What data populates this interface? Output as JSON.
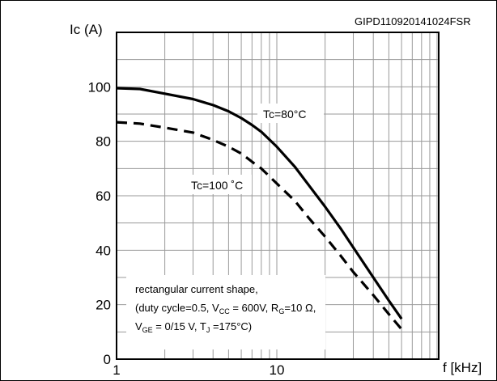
{
  "figure_id": "GIPD110920141024FSR",
  "chart_data": {
    "type": "line",
    "xscale": "log",
    "xlim": [
      1,
      60
    ],
    "ylim": [
      0,
      120
    ],
    "xlabel": "f [kHz]",
    "ylabel": "Ic (A)",
    "x_ticks": [
      1,
      10
    ],
    "y_ticks": [
      0,
      20,
      40,
      60,
      80,
      100
    ],
    "grid": true,
    "series": [
      {
        "name": "Tc=80°C",
        "style": "solid",
        "color": "#000000",
        "x": [
          1,
          1.4,
          2,
          3,
          4,
          5,
          6,
          7,
          8,
          10,
          13,
          16,
          20,
          25,
          30,
          40,
          50,
          60
        ],
        "y": [
          99.5,
          99.2,
          97.5,
          95.5,
          93.3,
          91,
          88.5,
          86,
          83.5,
          78,
          70.5,
          63.5,
          56,
          48,
          41,
          30,
          21.5,
          14.8
        ]
      },
      {
        "name": "Tc=100 ˚C",
        "style": "dashed",
        "color": "#000000",
        "x": [
          1,
          1.4,
          2,
          3,
          4,
          5,
          6,
          7,
          8,
          10,
          13,
          16,
          20,
          25,
          30,
          40,
          50,
          60
        ],
        "y": [
          87,
          86.5,
          85,
          83.2,
          80.5,
          78,
          75.5,
          72.5,
          70,
          64.5,
          58,
          51.5,
          45,
          38,
          32,
          23.5,
          16.5,
          11
        ]
      }
    ],
    "annotations": {
      "l1": "rectangular current shape,",
      "l2a": "(duty cycle=0.5, V",
      "l2s1": "CC",
      "l2b": " = 600V, R",
      "l2s2": "G",
      "l2c": "=10 Ω,",
      "l3a": "V",
      "l3s1": "GE",
      "l3b": " = 0/15 V, T",
      "l3s2": "J",
      "l3c": " =175°C)"
    }
  }
}
